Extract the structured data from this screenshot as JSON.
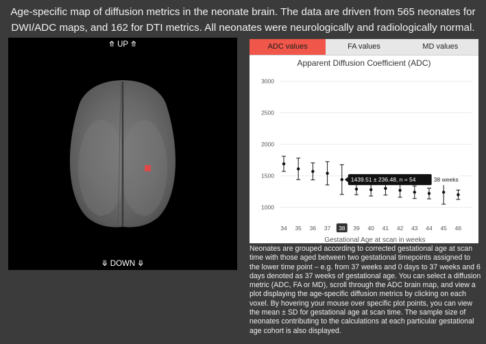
{
  "header": {
    "line1": "Age-specific map of diffusion metrics in the neonate brain. The data are driven from 565 neonates for",
    "line2": "DWI/ADC maps, and 162 for DTI metrics. All neonates were neurologically and radiologically normal."
  },
  "brain_map": {
    "up_label": "⤊ UP ⤊",
    "down_label": "⤋ DOWN ⤋",
    "selected_voxel_color": "#e04848"
  },
  "tabs": [
    {
      "label": "ADC values",
      "active": true
    },
    {
      "label": "FA values",
      "active": false
    },
    {
      "label": "MD values",
      "active": false
    }
  ],
  "colors": {
    "active_tab": "#f0574a",
    "tooltip_bg": "#111111",
    "background": "#3b3b3b"
  },
  "chart_data": {
    "type": "scatter",
    "title": "Apparent Diffusion Coefficient (ADC)",
    "xlabel": "Gestational Age at scan in weeks",
    "ylabel": "",
    "x": [
      34,
      35,
      36,
      37,
      38,
      39,
      40,
      41,
      42,
      43,
      44,
      45,
      46
    ],
    "y": [
      1690,
      1610,
      1570,
      1540,
      1440,
      1290,
      1280,
      1300,
      1270,
      1240,
      1220,
      1240,
      1200
    ],
    "error": [
      120,
      170,
      135,
      185,
      236,
      90,
      100,
      105,
      110,
      100,
      85,
      190,
      75
    ],
    "yticks": [
      1000,
      1500,
      2000,
      2500,
      3000
    ],
    "ylim": [
      800,
      3060
    ],
    "highlight_x": 38,
    "tooltip": {
      "text": "1439.51 ± 236.48, n = 54",
      "week_label": "38 weeks"
    },
    "grid": true
  },
  "description": "Neonates are grouped according to corrected gestational age at scan time with those aged between two gestational timepoints assigned to the lower time point – e.g. from 37 weeks and 0 days to 37 weeks and 6 days denoted as 37 weeks of gestational age. You can select a diffusion metric (ADC, FA or MD), scroll through the ADC brain map, and view a plot displaying the age-specific diffusion metrics by clicking on each voxel. By hovering your mouse over specific plot points, you can view the mean ± SD for gestational age at scan time. The sample size of neonates contributing to the calculations at each particular gestational age cohort is also displayed."
}
